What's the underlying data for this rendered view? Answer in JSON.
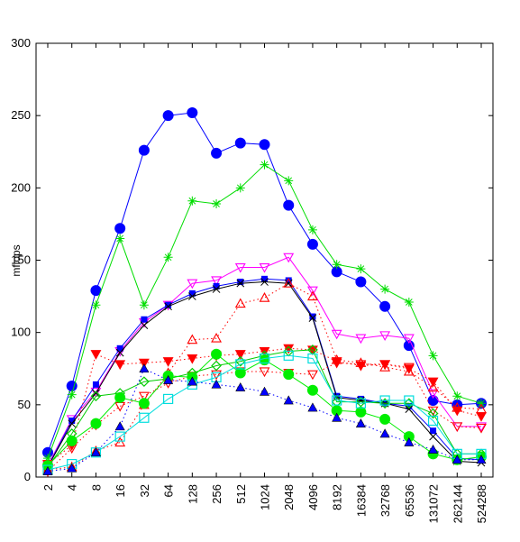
{
  "chart_data": {
    "type": "line",
    "title": "",
    "xlabel": "",
    "ylabel": "mflops",
    "ylim": [
      0,
      300
    ],
    "yticks": [
      0,
      50,
      100,
      150,
      200,
      250,
      300
    ],
    "categories": [
      "2",
      "4",
      "8",
      "16",
      "32",
      "64",
      "128",
      "256",
      "512",
      "1024",
      "2048",
      "4096",
      "8192",
      "16384",
      "32768",
      "65536",
      "131072",
      "262144",
      "524288"
    ],
    "grid": false,
    "legend": "none",
    "series": [
      {
        "color": "#0000ff",
        "style": "solid",
        "marker": "circle-filled",
        "values": [
          17,
          63,
          129,
          172,
          226,
          250,
          252,
          224,
          231,
          230,
          188,
          161,
          142,
          135,
          118,
          91,
          53,
          50,
          51
        ]
      },
      {
        "color": "#00dd00",
        "style": "solid",
        "marker": "star",
        "values": [
          13,
          57,
          119,
          165,
          119,
          152,
          191,
          189,
          200,
          216,
          205,
          171,
          147,
          144,
          130,
          121,
          84,
          56,
          51
        ]
      },
      {
        "color": "#ff00ff",
        "style": "solid",
        "marker": "triangle-down-open",
        "values": [
          8,
          40,
          59,
          87,
          107,
          119,
          134,
          136,
          145,
          145,
          152,
          129,
          99,
          96,
          98,
          96,
          58,
          35,
          35
        ]
      },
      {
        "color": "#0000ff",
        "style": "solid",
        "marker": "square-filled",
        "values": [
          7,
          39,
          64,
          89,
          109,
          119,
          127,
          132,
          135,
          137,
          136,
          111,
          56,
          54,
          51,
          49,
          32,
          13,
          12
        ]
      },
      {
        "color": "#000000",
        "style": "solid",
        "marker": "x",
        "values": [
          7,
          37,
          58,
          86,
          105,
          118,
          125,
          130,
          134,
          135,
          134,
          110,
          55,
          53,
          51,
          47,
          28,
          11,
          10
        ]
      },
      {
        "color": "#ff0000",
        "style": "dotted",
        "marker": "triangle-up-open",
        "values": [
          5,
          7,
          18,
          24,
          50,
          72,
          95,
          96,
          120,
          124,
          134,
          125,
          81,
          79,
          76,
          73,
          62,
          48,
          47
        ]
      },
      {
        "color": "#ff0000",
        "style": "dotted",
        "marker": "triangle-down-filled",
        "values": [
          9,
          22,
          85,
          78,
          79,
          80,
          82,
          84,
          85,
          87,
          89,
          88,
          80,
          77,
          78,
          75,
          66,
          46,
          42
        ]
      },
      {
        "color": "#ff0000",
        "style": "dotted",
        "marker": "triangle-down-open",
        "values": [
          4,
          20,
          36,
          49,
          56,
          65,
          70,
          71,
          73,
          73,
          72,
          71,
          79,
          78,
          78,
          76,
          46,
          35,
          34
        ]
      },
      {
        "color": "#00cc00",
        "style": "solid",
        "marker": "diamond-open",
        "values": [
          7,
          30,
          56,
          58,
          66,
          68,
          72,
          77,
          80,
          84,
          87,
          88,
          52,
          52,
          51,
          51,
          44,
          16,
          16
        ]
      },
      {
        "color": "#00ee00",
        "style": "solid",
        "marker": "circle-filled",
        "values": [
          8,
          25,
          37,
          55,
          51,
          70,
          69,
          85,
          72,
          81,
          71,
          60,
          46,
          45,
          40,
          28,
          16,
          12,
          14
        ]
      },
      {
        "color": "#00dddd",
        "style": "solid",
        "marker": "square-open",
        "values": [
          5,
          9,
          17,
          28,
          41,
          54,
          64,
          69,
          78,
          82,
          84,
          82,
          53,
          51,
          53,
          53,
          39,
          16,
          16
        ]
      },
      {
        "color": "#0000ff",
        "style": "dotted",
        "marker": "triangle-up-filled",
        "values": [
          4,
          6,
          17,
          35,
          75,
          67,
          66,
          64,
          62,
          59,
          53,
          48,
          41,
          37,
          30,
          24,
          19,
          12,
          12
        ]
      }
    ]
  }
}
